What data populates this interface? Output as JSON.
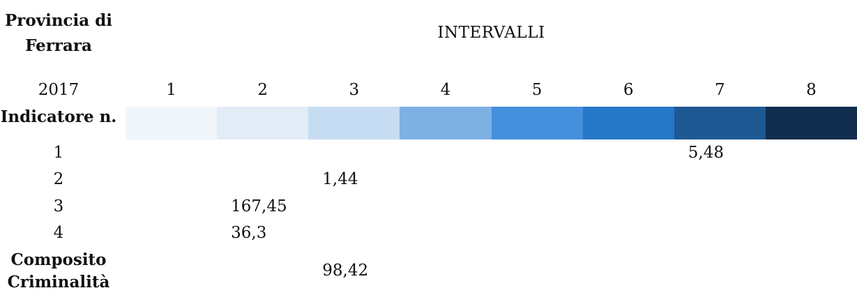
{
  "header": {
    "province": "Provincia di Ferrara",
    "year": "2017",
    "intervals_title": "INTERVALLI",
    "indicator_label": "Indicatore n."
  },
  "intervals": [
    "1",
    "2",
    "3",
    "4",
    "5",
    "6",
    "7",
    "8"
  ],
  "scale_colors": [
    "#f1f6fb",
    "#e1ecf7",
    "#c6dcf2",
    "#7db0e3",
    "#448fdc",
    "#2577c7",
    "#1e5993",
    "#112d4e"
  ],
  "rows": [
    {
      "label": "1",
      "value": "5,48",
      "interval": 7
    },
    {
      "label": "2",
      "value": "1,44",
      "interval": 3
    },
    {
      "label": "3",
      "value": "167,45",
      "interval": 2
    },
    {
      "label": "4",
      "value": "36,3",
      "interval": 2
    }
  ],
  "composite": {
    "label": "Composito Criminalità",
    "value": "98,42",
    "interval": 3
  }
}
